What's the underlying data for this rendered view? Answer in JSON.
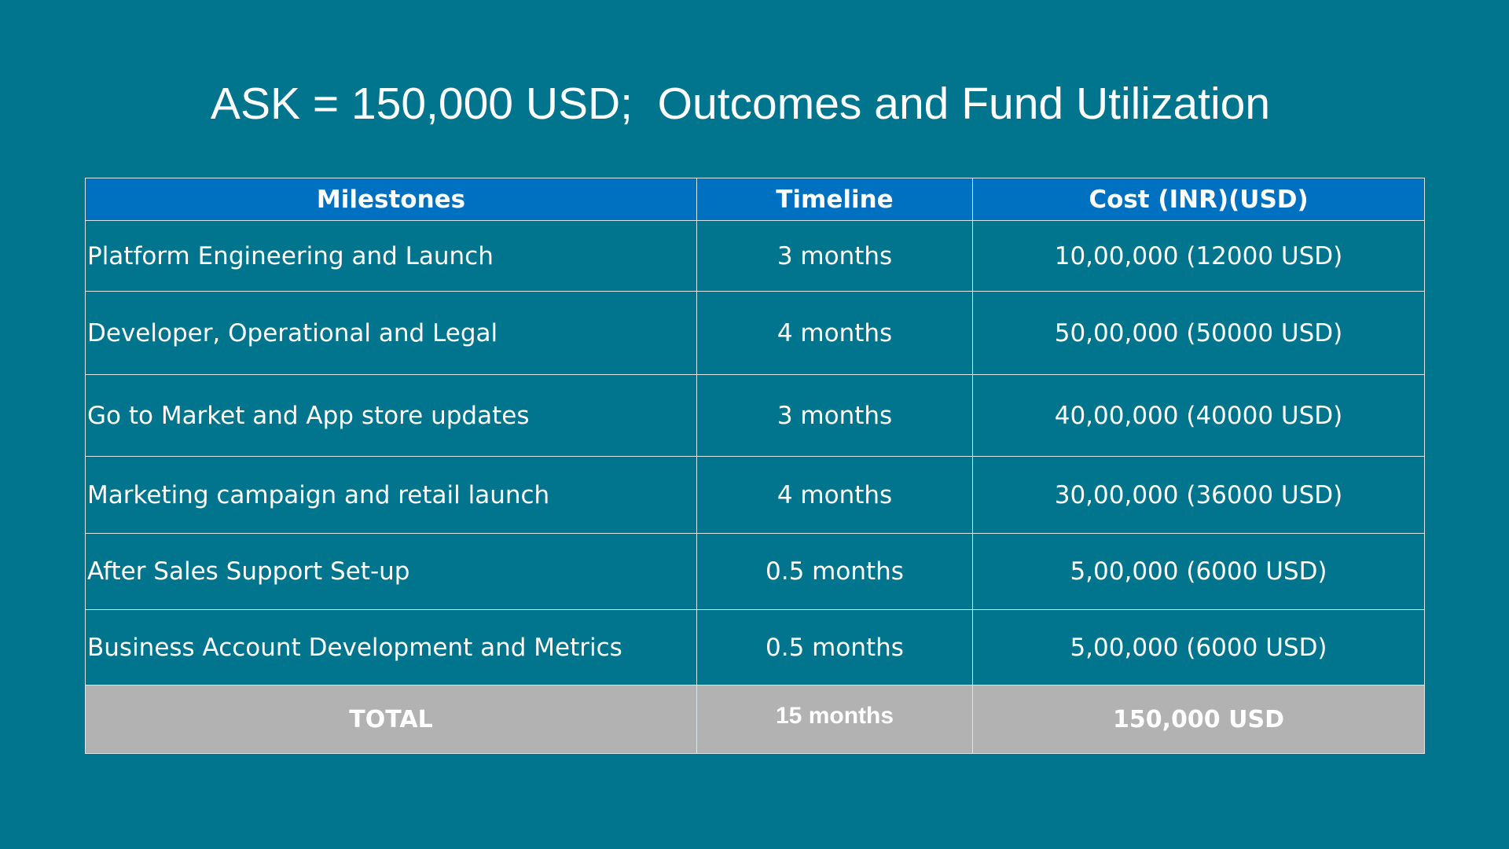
{
  "title": "ASK = 150,000 USD;  Outcomes and Fund Utilization",
  "table": {
    "headers": [
      "Milestones",
      "Timeline",
      "Cost (INR)(USD)"
    ],
    "rows": [
      {
        "milestone": "Platform Engineering and Launch",
        "timeline": "3 months",
        "cost": "10,00,000 (12000 USD)"
      },
      {
        "milestone": "Developer, Operational and Legal",
        "timeline": "4 months",
        "cost": "50,00,000 (50000 USD)"
      },
      {
        "milestone": "Go to Market and App store updates",
        "timeline": "3 months",
        "cost": "40,00,000 (40000 USD)"
      },
      {
        "milestone": "Marketing campaign and retail launch",
        "timeline": "4 months",
        "cost": "30,00,000 (36000 USD)"
      },
      {
        "milestone": "After Sales Support Set-up",
        "timeline": "0.5 months",
        "cost": "5,00,000 (6000 USD)"
      },
      {
        "milestone": "Business Account Development and Metrics",
        "timeline": "0.5 months",
        "cost": "5,00,000 (6000 USD)"
      }
    ],
    "total": {
      "label": "TOTAL",
      "timeline": "15 months",
      "cost": "150,000 USD"
    }
  },
  "colors": {
    "background": "#00758d",
    "header": "#0070c0",
    "total_row": "#b2b2b2",
    "text": "#ffffff"
  }
}
